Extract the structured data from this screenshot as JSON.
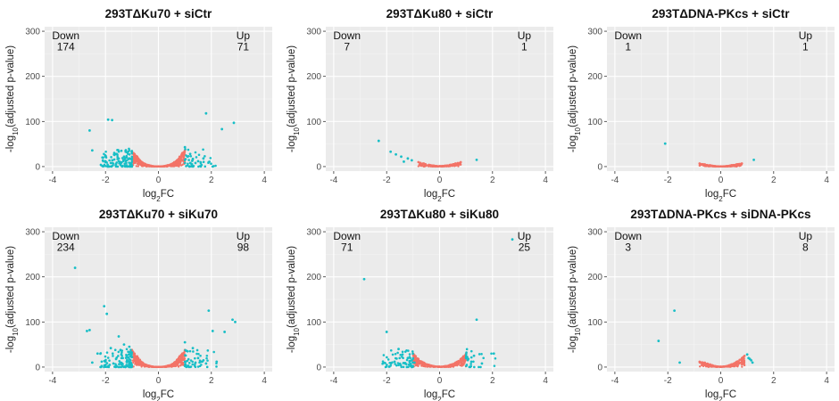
{
  "colors": {
    "up_down": "#17BEC6",
    "not_significant": "#F37367",
    "panel_bg": "#EBEBEB",
    "grid_major": "#FFFFFF",
    "grid_minor": "#F5F5F5"
  },
  "chart_data": [
    {
      "type": "scatter",
      "title": "293TΔKu70 + siCtr",
      "xlabel": "log2FC",
      "ylabel": "-log10(adjusted p-value)",
      "xlim": [
        -4.3,
        4.3
      ],
      "ylim": [
        -10,
        310
      ],
      "xticks": [
        -4,
        -2,
        0,
        2,
        4
      ],
      "yticks": [
        0,
        100,
        200,
        300
      ],
      "grid": true,
      "annotations": {
        "down_label": "Down",
        "down_count": "174",
        "up_label": "Up",
        "up_count": "71"
      },
      "series": [
        {
          "category": "significant",
          "color": "#17BEC6",
          "points": [
            [
              -2.6,
              80
            ],
            [
              -2.5,
              36
            ],
            [
              -1.9,
              104
            ],
            [
              -1.75,
              103
            ],
            [
              -1.6,
              28
            ],
            [
              -1.4,
              35
            ],
            [
              -1.3,
              22
            ],
            [
              -1.2,
              20
            ],
            [
              -1.1,
              18
            ],
            [
              -1.0,
              16
            ],
            [
              -1.5,
              12
            ],
            [
              -1.8,
              8
            ],
            [
              -2.1,
              14
            ],
            [
              -1.6,
              6
            ],
            [
              1.1,
              22
            ],
            [
              1.2,
              28
            ],
            [
              1.0,
              43
            ],
            [
              1.3,
              17
            ],
            [
              1.5,
              12
            ],
            [
              1.6,
              8
            ],
            [
              1.8,
              118
            ],
            [
              2.4,
              83
            ],
            [
              2.85,
              97
            ],
            [
              1.7,
              18
            ],
            [
              1.4,
              8
            ],
            [
              1.9,
              10
            ]
          ]
        },
        {
          "category": "not_significant",
          "color": "#F37367",
          "points": [
            [
              -1.0,
              34
            ],
            [
              -0.9,
              28
            ],
            [
              -0.8,
              22
            ],
            [
              -0.7,
              14
            ],
            [
              -0.6,
              9
            ],
            [
              -0.5,
              6
            ],
            [
              -0.35,
              3
            ],
            [
              -0.2,
              1
            ],
            [
              0,
              0.5
            ],
            [
              0.2,
              1
            ],
            [
              0.35,
              3
            ],
            [
              0.5,
              6
            ],
            [
              0.6,
              10
            ],
            [
              0.7,
              14
            ],
            [
              0.8,
              22
            ],
            [
              0.9,
              30
            ],
            [
              1.0,
              36
            ]
          ]
        }
      ]
    },
    {
      "type": "scatter",
      "title": "293TΔKu80 + siCtr",
      "xlabel": "log2FC",
      "ylabel": "-log10(adjusted p-value)",
      "xlim": [
        -4.3,
        4.3
      ],
      "ylim": [
        -10,
        310
      ],
      "xticks": [
        -4,
        -2,
        0,
        2,
        4
      ],
      "yticks": [
        0,
        100,
        200,
        300
      ],
      "grid": true,
      "annotations": {
        "down_label": "Down",
        "down_count": "7",
        "up_label": "Up",
        "up_count": "1"
      },
      "series": [
        {
          "category": "significant",
          "color": "#17BEC6",
          "points": [
            [
              -2.3,
              57
            ],
            [
              -1.85,
              33
            ],
            [
              -1.65,
              27
            ],
            [
              -1.45,
              22
            ],
            [
              -1.2,
              18
            ],
            [
              -1.05,
              14
            ],
            [
              -1.35,
              11
            ],
            [
              1.4,
              15
            ]
          ]
        },
        {
          "category": "not_significant",
          "color": "#F37367",
          "points": [
            [
              -0.8,
              10
            ],
            [
              -0.6,
              7
            ],
            [
              -0.4,
              4
            ],
            [
              -0.2,
              2
            ],
            [
              0,
              1
            ],
            [
              0.2,
              2
            ],
            [
              0.4,
              4
            ],
            [
              0.6,
              7
            ],
            [
              0.8,
              10
            ]
          ]
        }
      ]
    },
    {
      "type": "scatter",
      "title": "293TΔDNA-PKcs + siCtr",
      "xlabel": "log2FC",
      "ylabel": "-log10(adjusted p-value)",
      "xlim": [
        -4.3,
        4.3
      ],
      "ylim": [
        -10,
        310
      ],
      "xticks": [
        -4,
        -2,
        0,
        2,
        4
      ],
      "yticks": [
        0,
        100,
        200,
        300
      ],
      "grid": true,
      "annotations": {
        "down_label": "Down",
        "down_count": "1",
        "up_label": "Up",
        "up_count": "1"
      },
      "series": [
        {
          "category": "significant",
          "color": "#17BEC6",
          "points": [
            [
              -2.1,
              51
            ],
            [
              1.25,
              15
            ]
          ]
        },
        {
          "category": "not_significant",
          "color": "#F37367",
          "points": [
            [
              -0.8,
              7
            ],
            [
              -0.6,
              5
            ],
            [
              -0.4,
              3
            ],
            [
              -0.2,
              1
            ],
            [
              0,
              0.5
            ],
            [
              0.2,
              1
            ],
            [
              0.4,
              3
            ],
            [
              0.6,
              5
            ],
            [
              0.8,
              7
            ]
          ]
        }
      ]
    },
    {
      "type": "scatter",
      "title": "293TΔKu70 + siKu70",
      "xlabel": "log2FC",
      "ylabel": "-log10(adjusted p-value)",
      "xlim": [
        -4.3,
        4.3
      ],
      "ylim": [
        -10,
        310
      ],
      "xticks": [
        -4,
        -2,
        0,
        2,
        4
      ],
      "yticks": [
        0,
        100,
        200,
        300
      ],
      "grid": true,
      "annotations": {
        "down_label": "Down",
        "down_count": "234",
        "up_label": "Up",
        "up_count": "98"
      },
      "series": [
        {
          "category": "significant",
          "color": "#17BEC6",
          "points": [
            [
              -3.15,
              220
            ],
            [
              -2.05,
              135
            ],
            [
              -1.95,
              118
            ],
            [
              -2.7,
              80
            ],
            [
              -2.6,
              82
            ],
            [
              -1.5,
              68
            ],
            [
              -1.3,
              50
            ],
            [
              -1.1,
              45
            ],
            [
              -1.8,
              42
            ],
            [
              -2.3,
              30
            ],
            [
              -1.4,
              28
            ],
            [
              -1.2,
              25
            ],
            [
              -1.0,
              22
            ],
            [
              -1.6,
              18
            ],
            [
              -2.0,
              12
            ],
            [
              -1.7,
              8
            ],
            [
              -2.5,
              10
            ],
            [
              1.0,
              55
            ],
            [
              1.3,
              42
            ],
            [
              1.1,
              35
            ],
            [
              1.5,
              20
            ],
            [
              1.7,
              15
            ],
            [
              1.9,
              125
            ],
            [
              2.05,
              80
            ],
            [
              2.5,
              78
            ],
            [
              2.8,
              105
            ],
            [
              2.9,
              100
            ],
            [
              1.8,
              8
            ],
            [
              1.4,
              10
            ],
            [
              2.2,
              12
            ]
          ]
        },
        {
          "category": "not_significant",
          "color": "#F37367",
          "points": [
            [
              -1.0,
              38
            ],
            [
              -0.9,
              30
            ],
            [
              -0.8,
              24
            ],
            [
              -0.7,
              16
            ],
            [
              -0.6,
              10
            ],
            [
              -0.5,
              6
            ],
            [
              -0.35,
              3
            ],
            [
              -0.2,
              1
            ],
            [
              0,
              0.5
            ],
            [
              0.2,
              1
            ],
            [
              0.35,
              3
            ],
            [
              0.5,
              6
            ],
            [
              0.6,
              10
            ],
            [
              0.7,
              16
            ],
            [
              0.8,
              24
            ],
            [
              0.9,
              30
            ],
            [
              1.0,
              38
            ]
          ]
        }
      ]
    },
    {
      "type": "scatter",
      "title": "293TΔKu80 + siKu80",
      "xlabel": "log2FC",
      "ylabel": "-log10(adjusted p-value)",
      "xlim": [
        -4.3,
        4.3
      ],
      "ylim": [
        -10,
        310
      ],
      "xticks": [
        -4,
        -2,
        0,
        2,
        4
      ],
      "yticks": [
        0,
        100,
        200,
        300
      ],
      "grid": true,
      "annotations": {
        "down_label": "Down",
        "down_count": "71",
        "up_label": "Up",
        "up_count": "25"
      },
      "series": [
        {
          "category": "significant",
          "color": "#17BEC6",
          "points": [
            [
              -2.85,
              195
            ],
            [
              -2.0,
              78
            ],
            [
              -1.55,
              40
            ],
            [
              -1.4,
              28
            ],
            [
              -1.2,
              20
            ],
            [
              -1.05,
              15
            ],
            [
              -1.7,
              12
            ],
            [
              -1.3,
              9
            ],
            [
              -0.95,
              10
            ],
            [
              1.0,
              20
            ],
            [
              1.3,
              25
            ],
            [
              1.4,
              105
            ],
            [
              2.05,
              30
            ],
            [
              2.75,
              283
            ],
            [
              1.6,
              8
            ],
            [
              1.2,
              12
            ]
          ]
        },
        {
          "category": "not_significant",
          "color": "#F37367",
          "points": [
            [
              -1.0,
              30
            ],
            [
              -0.9,
              24
            ],
            [
              -0.8,
              18
            ],
            [
              -0.6,
              10
            ],
            [
              -0.4,
              5
            ],
            [
              -0.2,
              2
            ],
            [
              0,
              1
            ],
            [
              0.2,
              2
            ],
            [
              0.4,
              5
            ],
            [
              0.6,
              10
            ],
            [
              0.8,
              18
            ],
            [
              0.9,
              24
            ],
            [
              1.0,
              30
            ]
          ]
        }
      ]
    },
    {
      "type": "scatter",
      "title": "293TΔDNA-PKcs + siDNA-PKcs",
      "xlabel": "log2FC",
      "ylabel": "-log10(adjusted p-value)",
      "xlim": [
        -4.3,
        4.3
      ],
      "ylim": [
        -10,
        310
      ],
      "xticks": [
        -4,
        -2,
        0,
        2,
        4
      ],
      "yticks": [
        0,
        100,
        200,
        300
      ],
      "grid": true,
      "annotations": {
        "down_label": "Down",
        "down_count": "3",
        "up_label": "Up",
        "up_count": "8"
      },
      "series": [
        {
          "category": "significant",
          "color": "#17BEC6",
          "points": [
            [
              -2.35,
              58
            ],
            [
              -1.75,
              125
            ],
            [
              -1.55,
              10
            ],
            [
              1.0,
              28
            ],
            [
              1.05,
              20
            ],
            [
              1.1,
              18
            ],
            [
              1.15,
              15
            ],
            [
              1.2,
              10
            ]
          ]
        },
        {
          "category": "not_significant",
          "color": "#F37367",
          "points": [
            [
              -0.8,
              12
            ],
            [
              -0.6,
              10
            ],
            [
              -0.4,
              6
            ],
            [
              -0.2,
              2
            ],
            [
              0,
              1
            ],
            [
              0.2,
              2
            ],
            [
              0.4,
              6
            ],
            [
              0.6,
              12
            ],
            [
              0.8,
              20
            ],
            [
              0.9,
              25
            ]
          ]
        }
      ]
    }
  ]
}
